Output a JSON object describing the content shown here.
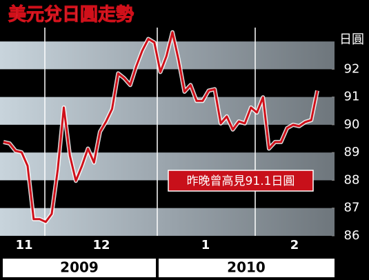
{
  "chart_data": {
    "type": "line",
    "title": "美元兌日圓走勢",
    "y_unit": "日圓",
    "annotation": "昨晚曾高見91.1日圓",
    "month_labels": [
      "11",
      "12",
      "1",
      "2"
    ],
    "years": [
      "2009",
      "2010"
    ],
    "color": "#d0101a",
    "ylim": [
      85.8,
      93.5
    ],
    "yticks": [
      86,
      87,
      88,
      89,
      90,
      91,
      92
    ],
    "values": [
      89.38,
      89.33,
      89.06,
      89.01,
      88.52,
      86.6,
      86.6,
      86.5,
      86.79,
      88.4,
      90.62,
      88.89,
      87.98,
      88.52,
      89.14,
      88.64,
      89.75,
      90.12,
      90.57,
      91.85,
      91.68,
      91.43,
      92.1,
      92.67,
      93.09,
      92.96,
      91.9,
      92.47,
      93.33,
      92.35,
      91.19,
      91.43,
      90.86,
      90.86,
      91.23,
      91.28,
      90.05,
      90.3,
      89.83,
      90.12,
      90.05,
      90.62,
      90.44,
      90.99,
      89.14,
      89.38,
      89.38,
      89.88,
      90.0,
      89.95,
      90.1,
      90.17,
      91.23
    ]
  }
}
